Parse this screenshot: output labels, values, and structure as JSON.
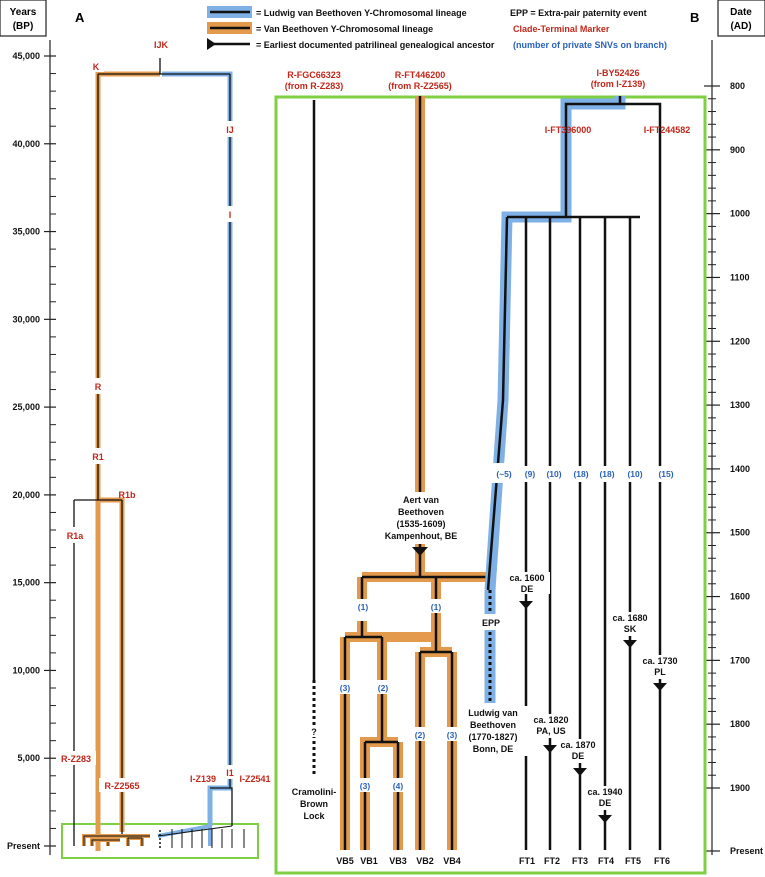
{
  "colors": {
    "orange": "#e39a4c",
    "blue": "#7fb1e6",
    "green": "#7fcf45",
    "red": "#c0281c",
    "blueText": "#2a62b8",
    "black": "#111111"
  },
  "header": {
    "left_title_line1": "Years",
    "left_title_line2": "(BP)",
    "right_title_line1": "Date",
    "right_title_line2": "(AD)",
    "panel_a": "A",
    "panel_b": "B"
  },
  "legend": {
    "item1": "= Ludwig van Beethoven Y-Chromosomal lineage",
    "item2": "= Van Beethoven Y-Chromosomal lineage",
    "item3": "= Earliest documented patrilineal genealogical ancestor",
    "epp": "EPP = Extra-pair paternity event",
    "marker": "Clade-Terminal Marker",
    "snv": "(number of private SNVs on branch)"
  },
  "left_axis": {
    "ticks": [
      {
        "label": "45,000"
      },
      {
        "label": "40,000"
      },
      {
        "label": "35,000"
      },
      {
        "label": "30,000"
      },
      {
        "label": "25,000"
      },
      {
        "label": "20,000"
      },
      {
        "label": "15,000"
      },
      {
        "label": "10,000"
      },
      {
        "label": "5,000"
      },
      {
        "label": "Present"
      }
    ]
  },
  "right_axis": {
    "ticks": [
      {
        "label": "800"
      },
      {
        "label": "900"
      },
      {
        "label": "1000"
      },
      {
        "label": "1100"
      },
      {
        "label": "1200"
      },
      {
        "label": "1300"
      },
      {
        "label": "1400"
      },
      {
        "label": "1500"
      },
      {
        "label": "1600"
      },
      {
        "label": "1700"
      },
      {
        "label": "1800"
      },
      {
        "label": "1900"
      },
      {
        "label": "Present"
      }
    ]
  },
  "panel_a_labels": {
    "ijk": "IJK",
    "k": "K",
    "ij": "IJ",
    "i": "I",
    "r": "R",
    "r1": "R1",
    "r1b": "R1b",
    "r1a": "R1a",
    "r_z283": "R-Z283",
    "r_z2565": "R-Z2565",
    "i_z139": "I-Z139",
    "i1": "I1",
    "i_z2541": "I-Z2541"
  },
  "panel_b_clades": {
    "fgc_line1": "R-FGC66323",
    "fgc_line2": "(from R-Z283)",
    "ft446_line1": "R-FT446200",
    "ft446_line2": "(from R-Z2565)",
    "by_line1": "I-BY52426",
    "by_line2": "(from I-Z139)",
    "ft396": "I-FT396000",
    "ft244": "I-FT244582"
  },
  "snv_counts": {
    "lvb": "(~5)",
    "ft1": "(9)",
    "ft2": "(10)",
    "ft3": "(18)",
    "ft4": "(18)",
    "ft5": "(10)",
    "ft6": "(15)",
    "left_upper": "(1)",
    "right_upper": "(1)",
    "vb5": "(3)",
    "vb_mid": "(2)",
    "vb1": "(3)",
    "vb3": "(4)",
    "vb2": "(2)",
    "vb4": "(3)"
  },
  "annotations": {
    "aert_line1": "Aert van",
    "aert_line2": "Beethoven",
    "aert_line3": "(1535-1609)",
    "aert_line4": "Kampenhout, BE",
    "lvb_line1": "Ludwig van",
    "lvb_line2": "Beethoven",
    "lvb_line3": "(1770-1827)",
    "lvb_line4": "Bonn, DE",
    "epp": "EPP",
    "question": "?",
    "lock_line1": "Cramolini-",
    "lock_line2": "Brown",
    "lock_line3": "Lock",
    "ft1_line1": "ca. 1600",
    "ft1_line2": "DE",
    "ft2_line1": "ca. 1820",
    "ft2_line2": "PA, US",
    "ft3_line1": "ca. 1870",
    "ft3_line2": "DE",
    "ft4_line1": "ca. 1940",
    "ft4_line2": "DE",
    "ft5_line1": "ca. 1680",
    "ft5_line2": "SK",
    "ft6_line1": "ca. 1730",
    "ft6_line2": "PL"
  },
  "leaves": {
    "vb5": "VB5",
    "vb1": "VB1",
    "vb3": "VB3",
    "vb2": "VB2",
    "vb4": "VB4",
    "ft1": "FT1",
    "ft2": "FT2",
    "ft3": "FT3",
    "ft4": "FT4",
    "ft5": "FT5",
    "ft6": "FT6"
  }
}
